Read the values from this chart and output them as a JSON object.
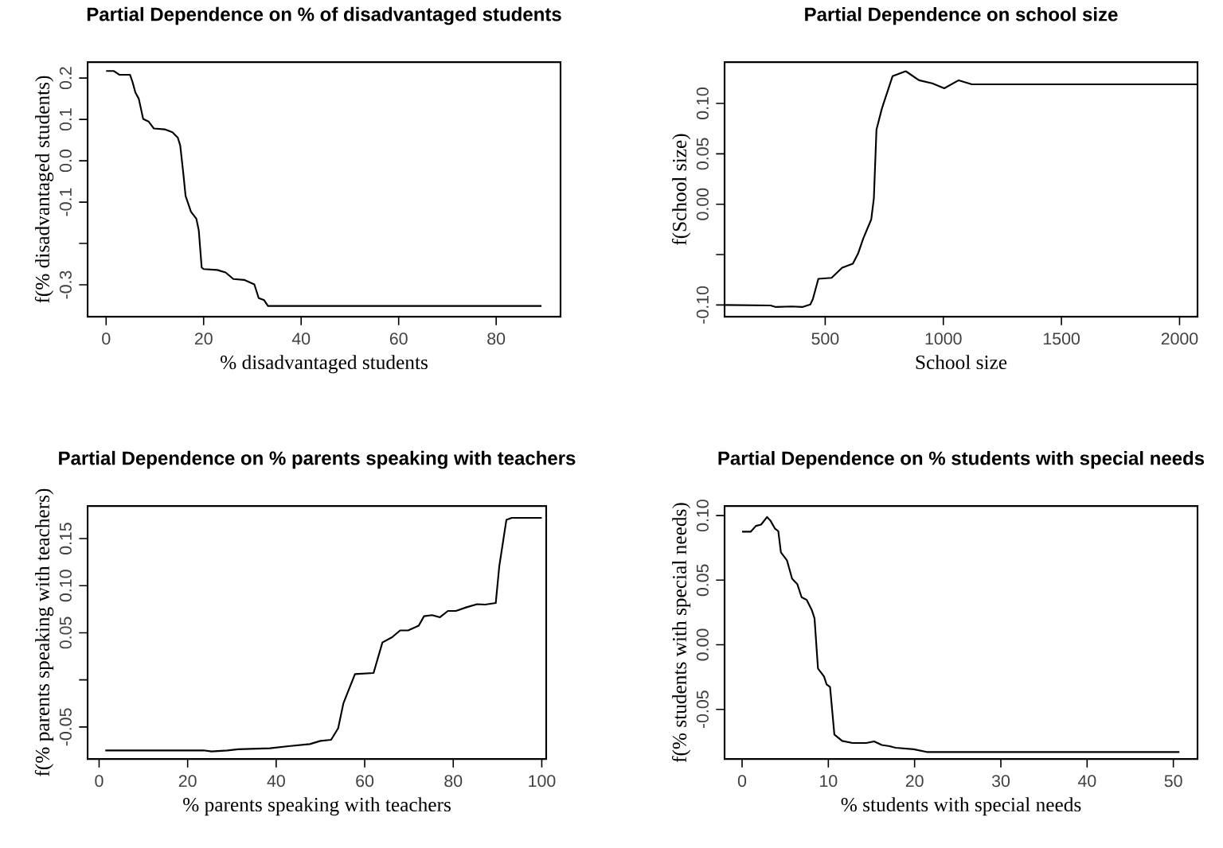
{
  "chart_data": [
    {
      "type": "line",
      "title": "Partial Dependence on % of disadvantaged students",
      "xlabel": "% disadvantaged students",
      "ylabel": "f(% disadvantaged students)",
      "xlim": [
        -3.8,
        93.2
      ],
      "ylim": [
        -0.377,
        0.2385
      ],
      "xticks": [
        0,
        20,
        40,
        60,
        80
      ],
      "yticks": [
        {
          "value": -0.3,
          "label": "-0.3"
        },
        {
          "value": -0.2,
          "label": null
        },
        {
          "value": -0.1,
          "label": "-0.1"
        },
        {
          "value": 0,
          "label": "0.0"
        },
        {
          "value": 0.1,
          "label": "0.1"
        },
        {
          "value": 0.2,
          "label": "0.2"
        }
      ],
      "x": [
        0,
        1.6,
        2.7,
        4.9,
        5.4,
        6,
        6.7,
        7.6,
        8.7,
        9.8,
        12,
        13.6,
        14.7,
        15.2,
        15.8,
        16.3,
        17.4,
        18.5,
        19,
        19.6,
        20,
        22.8,
        24.5,
        26.1,
        28.3,
        30.4,
        31.3,
        32.4,
        33.2,
        89.3
      ],
      "series": [
        {
          "color": "#000000",
          "values": [
            0.217,
            0.217,
            0.208,
            0.208,
            0.191,
            0.165,
            0.15,
            0.101,
            0.095,
            0.078,
            0.076,
            0.069,
            0.056,
            0.037,
            -0.027,
            -0.085,
            -0.123,
            -0.14,
            -0.168,
            -0.258,
            -0.262,
            -0.264,
            -0.27,
            -0.286,
            -0.288,
            -0.299,
            -0.332,
            -0.337,
            -0.351,
            -0.351
          ]
        }
      ]
    },
    {
      "type": "line",
      "title": "Partial Dependence on school size",
      "xlabel": "School size",
      "ylabel": "f(School size)",
      "xlim": [
        74,
        2076
      ],
      "ylim": [
        -0.1116,
        0.141
      ],
      "xticks": [
        500,
        1000,
        1500,
        2000
      ],
      "yticks": [
        {
          "value": -0.1,
          "label": "-0.10"
        },
        {
          "value": -0.05,
          "label": null
        },
        {
          "value": 0,
          "label": "0.00"
        },
        {
          "value": 0.05,
          "label": "0.05"
        },
        {
          "value": 0.1,
          "label": "0.10"
        }
      ],
      "x": [
        74,
        269,
        291,
        359,
        403,
        437,
        448,
        471,
        527,
        572,
        617,
        639,
        661,
        695,
        706,
        717,
        740,
        785,
        841,
        897,
        953,
        1004,
        1065,
        1121,
        2074
      ],
      "series": [
        {
          "color": "#000000",
          "values": [
            -0.1,
            -0.1005,
            -0.102,
            -0.1015,
            -0.102,
            -0.0995,
            -0.094,
            -0.074,
            -0.073,
            -0.063,
            -0.059,
            -0.049,
            -0.034,
            -0.015,
            0.006,
            0.074,
            0.095,
            0.127,
            0.132,
            0.123,
            0.12,
            0.115,
            0.123,
            0.119,
            0.119
          ]
        }
      ]
    },
    {
      "type": "line",
      "title": "Partial Dependence on % parents speaking with teachers",
      "xlabel": "% parents speaking with teachers",
      "ylabel": "f(% parents speaking with teachers)",
      "xlim": [
        -2.6,
        101
      ],
      "ylim": [
        -0.084,
        0.1846
      ],
      "xticks": [
        0,
        20,
        40,
        60,
        80,
        100
      ],
      "yticks": [
        {
          "value": -0.05,
          "label": "-0.05"
        },
        {
          "value": 0,
          "label": null
        },
        {
          "value": 0.05,
          "label": "0.05"
        },
        {
          "value": 0.1,
          "label": "0.10"
        },
        {
          "value": 0.15,
          "label": "0.15"
        }
      ],
      "x": [
        1.4,
        23.6,
        25.4,
        29,
        31.4,
        38.6,
        42.8,
        47.6,
        50,
        52.4,
        54,
        55.2,
        57.8,
        62,
        64,
        66.2,
        68,
        69.8,
        72.2,
        73.4,
        75.2,
        77,
        78.8,
        80.6,
        83,
        85.4,
        87.2,
        89.6,
        90.4,
        92,
        93.2,
        100
      ],
      "series": [
        {
          "color": "#000000",
          "values": [
            -0.0749,
            -0.0749,
            -0.076,
            -0.0749,
            -0.0737,
            -0.0726,
            -0.0704,
            -0.0682,
            -0.0648,
            -0.0637,
            -0.0514,
            -0.0246,
            0.0061,
            0.0073,
            0.0397,
            0.0453,
            0.0525,
            0.0525,
            0.0575,
            0.0676,
            0.0687,
            0.0665,
            0.0732,
            0.0732,
            0.0771,
            0.0804,
            0.0799,
            0.0816,
            0.1207,
            0.1698,
            0.172,
            0.172
          ]
        }
      ]
    },
    {
      "type": "line",
      "title": "Partial Dependence on % students with special needs",
      "xlabel": "% students with special needs",
      "ylabel": "f(% students with special needs)",
      "xlim": [
        -2.03,
        52.8
      ],
      "ylim": [
        -0.0884,
        0.1074
      ],
      "xticks": [
        0,
        10,
        20,
        30,
        40,
        50
      ],
      "yticks": [
        {
          "value": -0.05,
          "label": "-0.05"
        },
        {
          "value": 0,
          "label": "0.00"
        },
        {
          "value": 0.05,
          "label": "0.05"
        },
        {
          "value": 0.1,
          "label": "0.10"
        }
      ],
      "x": [
        0,
        1,
        1.6,
        2.2,
        2.9,
        3.3,
        3.8,
        4.2,
        4.5,
        5.2,
        5.8,
        6.4,
        6.9,
        7.5,
        8.1,
        8.4,
        8.8,
        9.5,
        9.8,
        10.2,
        10.7,
        11.6,
        12.8,
        14.4,
        15.3,
        16.2,
        17.1,
        17.8,
        19.9,
        21.4,
        50.7
      ],
      "series": [
        {
          "color": "#000000",
          "values": [
            0.0875,
            0.0875,
            0.092,
            0.093,
            0.0989,
            0.096,
            0.09,
            0.0879,
            0.0715,
            0.0654,
            0.0511,
            0.047,
            0.0368,
            0.0347,
            0.0266,
            0.0204,
            -0.0184,
            -0.0245,
            -0.0307,
            -0.0327,
            -0.0695,
            -0.0744,
            -0.076,
            -0.076,
            -0.0748,
            -0.0776,
            -0.0785,
            -0.0797,
            -0.0809,
            -0.083,
            -0.083
          ]
        }
      ]
    }
  ]
}
